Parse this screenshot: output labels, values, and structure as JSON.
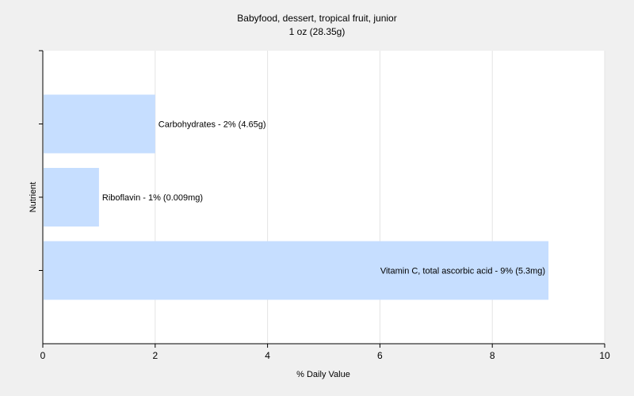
{
  "chart_data": {
    "type": "bar",
    "orientation": "horizontal",
    "title": "Babyfood, dessert, tropical fruit, junior",
    "subtitle": "1 oz (28.35g)",
    "xlabel": "% Daily Value",
    "ylabel": "Nutrient",
    "xlim": [
      0,
      10
    ],
    "x_ticks": [
      0,
      2,
      4,
      6,
      8,
      10
    ],
    "grid": true,
    "categories": [
      "Carbohydrates",
      "Riboflavin",
      "Vitamin C, total ascorbic acid"
    ],
    "values": [
      2,
      1,
      9
    ],
    "data_labels": [
      "Carbohydrates - 2% (4.65g)",
      "Riboflavin - 1% (0.009mg)",
      "Vitamin C, total ascorbic acid - 9% (5.3mg)"
    ],
    "colors": {
      "bar": "#c6deff",
      "grid": "#e4e4e4",
      "plot_bg": "#ffffff",
      "page_bg": "#f0f0f0"
    }
  }
}
